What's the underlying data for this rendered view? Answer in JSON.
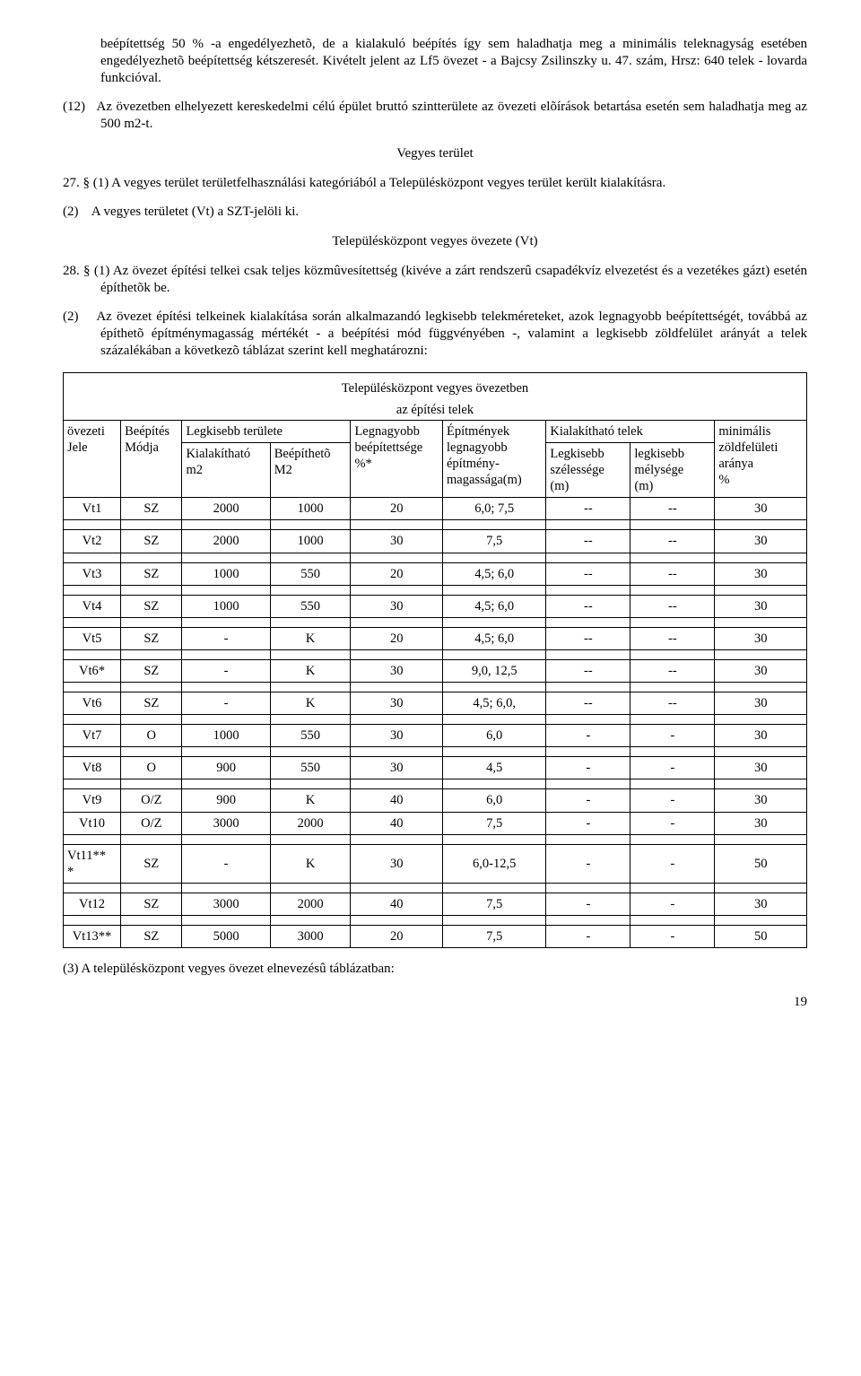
{
  "p1": "beépítettség 50 % -a engedélyezhetõ, de a kialakuló beépítés így sem haladhatja meg a minimális teleknagyság esetében engedélyezhetõ beépítettség kétszeresét. Kivételt jelent az Lf5 övezet - a Bajcsy Zsilinszky u. 47. szám, Hrsz: 640 telek - lovarda funkcióval.",
  "p2_num": "(12)",
  "p2": "Az övezetben elhelyezett kereskedelmi célú épület bruttó szintterülete az övezeti elõírások betartása esetén sem haladhatja meg az 500 m2-t.",
  "h_vegyes": "Vegyes terület",
  "p3": "27. § (1) A vegyes terület területfelhasználási kategóriából a Településközpont vegyes terület került kialakításra.",
  "p4_num": "(2)",
  "p4": "A vegyes területet (Vt) a SZT-jelöli ki.",
  "h_telepules": "Településközpont vegyes övezete (Vt)",
  "p5": "28. § (1) Az övezet építési telkei csak teljes közmûvesítettség (kivéve a zárt rendszerû csapadékvíz elvezetést és a vezetékes gázt) esetén építhetõk be.",
  "p6_num": "(2)",
  "p6": "Az övezet építési telkeinek kialakítása során alkalmazandó legkisebb telekméreteket, azok legnagyobb beépítettségét, továbbá az építhetõ építménymagasság mértékét - a beépítési mód függvényében -, valamint a legkisebb zöldfelület arányát a telek százalékában a következõ táblázat szerint kell meghatározni:",
  "t_title": "Településközpont vegyes övezetben",
  "t_sub": "az építési telek",
  "hdr": {
    "c1a": "övezeti",
    "c1b": "Jele",
    "c2a": "Beépítés",
    "c2b": "Módja",
    "c34": "Legkisebb területe",
    "c3a": "Kialakítható",
    "c3b": "m2",
    "c4a": "Beépíthetõ",
    "c4b": "M2",
    "c5a": "Legnagyobb",
    "c5b": "beépítettsége",
    "c5c": "%*",
    "c6a": "Építmények",
    "c6b": "legnagyobb",
    "c6c": "építmény-",
    "c6d": "magassága(m)",
    "c78": "Kialakítható telek",
    "c7a": "Legkisebb",
    "c7b": "szélessége",
    "c7c": "(m)",
    "c8a": "legkisebb",
    "c8b": "mélysége",
    "c8c": "(m)",
    "c9a": "minimális",
    "c9b": "zöldfelületi",
    "c9c": "aránya",
    "c9d": "%"
  },
  "rows": [
    [
      "Vt1",
      "SZ",
      "2000",
      "1000",
      "20",
      "6,0; 7,5",
      "--",
      "--",
      "30"
    ],
    [
      "Vt2",
      "SZ",
      "2000",
      "1000",
      "30",
      "7,5",
      "--",
      "--",
      "30"
    ],
    [
      "Vt3",
      "SZ",
      "1000",
      "550",
      "20",
      "4,5; 6,0",
      "--",
      "--",
      "30"
    ],
    [
      "Vt4",
      "SZ",
      "1000",
      "550",
      "30",
      "4,5; 6,0",
      "--",
      "--",
      "30"
    ],
    [
      "Vt5",
      "SZ",
      "-",
      "K",
      "20",
      "4,5; 6,0",
      "--",
      "--",
      "30"
    ],
    [
      "Vt6*",
      "SZ",
      "-",
      "K",
      "30",
      "9,0, 12,5",
      "--",
      "--",
      "30"
    ],
    [
      "Vt6",
      "SZ",
      "-",
      "K",
      "30",
      "4,5; 6,0,",
      "--",
      "--",
      "30"
    ],
    [
      "Vt7",
      "O",
      "1000",
      "550",
      "30",
      "6,0",
      "-",
      "-",
      "30"
    ],
    [
      "Vt8",
      "O",
      "900",
      "550",
      "30",
      "4,5",
      "-",
      "-",
      "30"
    ],
    [
      "Vt9",
      "O/Z",
      "900",
      "K",
      "40",
      "6,0",
      "-",
      "-",
      "30"
    ],
    [
      "Vt10",
      "O/Z",
      "3000",
      "2000",
      "40",
      "7,5",
      "-",
      "-",
      "30"
    ],
    [
      "Vt11***",
      "SZ",
      "-",
      "K",
      "30",
      "6,0-12,5",
      "-",
      "-",
      "50"
    ],
    [
      "Vt12",
      "SZ",
      "3000",
      "2000",
      "40",
      "7,5",
      "-",
      "-",
      "30"
    ],
    [
      "Vt13**",
      "SZ",
      "5000",
      "3000",
      "20",
      "7,5",
      "-",
      "-",
      "50"
    ]
  ],
  "p7": "(3) A településközpont vegyes övezet elnevezésû táblázatban:",
  "pagenum": "19",
  "spacer_rows": [
    0,
    1,
    2,
    3,
    4,
    5,
    6,
    7,
    8,
    10,
    11,
    12
  ],
  "twoline_rows": [
    11
  ]
}
